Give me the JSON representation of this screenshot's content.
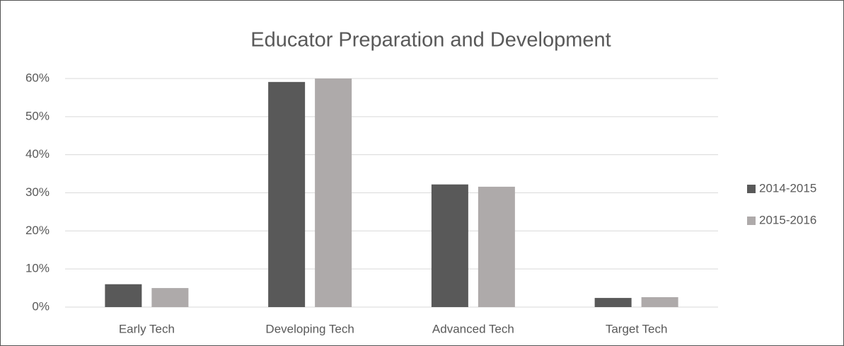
{
  "chart_data": {
    "type": "bar",
    "title": "Educator Preparation and Development",
    "categories": [
      "Early Tech",
      "Developing Tech",
      "Advanced Tech",
      "Target Tech"
    ],
    "series": [
      {
        "name": "2014-2015",
        "color": "#595959",
        "values": [
          6,
          59.1,
          32.2,
          2.4
        ]
      },
      {
        "name": "2015-2016",
        "color": "#aeaaaa",
        "values": [
          5,
          60,
          31.6,
          2.6
        ]
      }
    ],
    "ylim": [
      0,
      60
    ],
    "yticks": [
      {
        "value": 0,
        "label": "0%"
      },
      {
        "value": 10,
        "label": "10%"
      },
      {
        "value": 20,
        "label": "20%"
      },
      {
        "value": 30,
        "label": "30%"
      },
      {
        "value": 40,
        "label": "40%"
      },
      {
        "value": 50,
        "label": "50%"
      },
      {
        "value": 60,
        "label": "60%"
      }
    ],
    "grid": true,
    "legend": "right"
  }
}
